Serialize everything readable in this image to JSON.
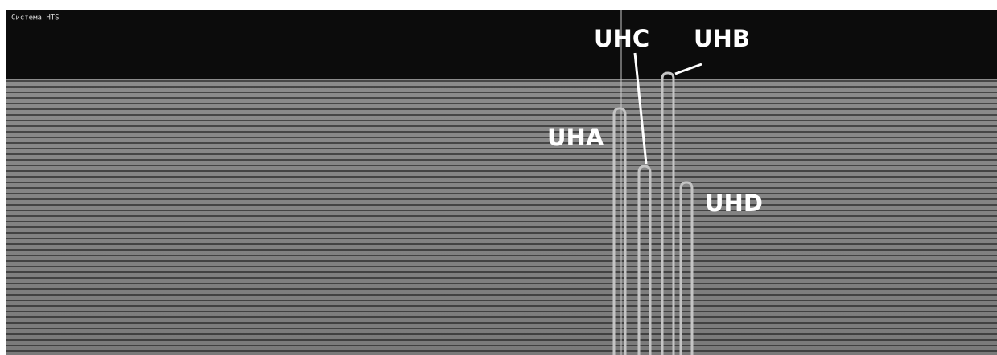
{
  "header": {
    "title": "Система HTS"
  },
  "peaks": [
    {
      "label": "UHA"
    },
    {
      "label": "UHC"
    },
    {
      "label": "UHB"
    },
    {
      "label": "UHD"
    }
  ]
}
